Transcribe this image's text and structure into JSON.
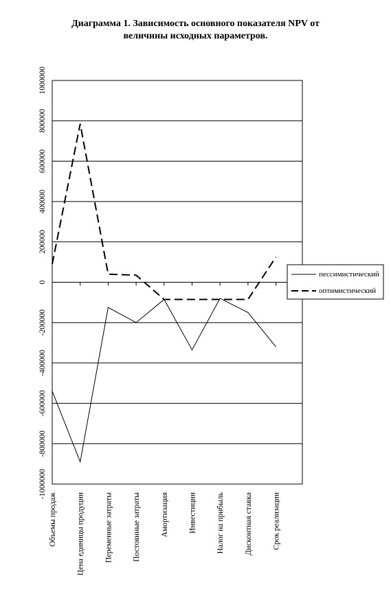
{
  "chart_data": {
    "type": "line",
    "title_line1": "Диаграмма 1. Зависимость основного показателя NPV от",
    "title_line2": "величины исходных параметров.",
    "xlabel": "",
    "ylabel": "",
    "ylim": [
      -1000000,
      1000000
    ],
    "yticks": [
      -1000000,
      -800000,
      -600000,
      -400000,
      -200000,
      0,
      200000,
      400000,
      600000,
      800000,
      1000000
    ],
    "ytick_labels": [
      "-1000000",
      "-800000",
      "-600000",
      "-400000",
      "-200000",
      "0",
      "200000",
      "400000",
      "600000",
      "800000",
      "1000000"
    ],
    "grid": true,
    "legend_position": "right",
    "categories": [
      "Объемы продаж",
      "Цена единицы продуции",
      "Переменные затраты",
      "Постоянные затраты",
      "Амортизация",
      "Инвестиции",
      "Налог на прибыль",
      "Дисконтная ставка",
      "Срок реализации"
    ],
    "series": [
      {
        "name": "пессимистический",
        "style": "solid",
        "color": "#000000",
        "values": [
          -540000,
          -890000,
          -125000,
          -200000,
          -85000,
          -335000,
          -80000,
          -150000,
          -320000
        ]
      },
      {
        "name": "оптимистический",
        "style": "dashed",
        "color": "#000000",
        "values": [
          90000,
          785000,
          40000,
          35000,
          -85000,
          -85000,
          -85000,
          -85000,
          125000
        ]
      }
    ]
  }
}
